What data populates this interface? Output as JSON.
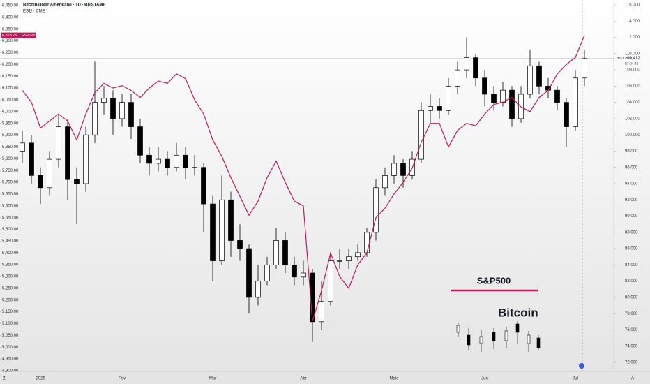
{
  "chart_data": {
    "type": "candlestick",
    "title": "Bitcoin/Dólar Americano · 1D · BITSTAMP",
    "subtitle": "ES1! · CME",
    "categories": [
      null,
      null,
      "2025",
      null,
      null,
      null,
      null,
      null,
      null,
      null,
      null,
      "Fev",
      null,
      null,
      null,
      null,
      null,
      null,
      null,
      null,
      null,
      "Mar",
      null,
      null,
      null,
      null,
      null,
      null,
      null,
      null,
      null,
      "Abr",
      null,
      null,
      null,
      null,
      null,
      null,
      null,
      null,
      null,
      "Maio",
      null,
      null,
      null,
      null,
      null,
      null,
      null,
      null,
      null,
      "Jun",
      null,
      null,
      null,
      null,
      null,
      null,
      null,
      null,
      null,
      "Jul",
      null
    ],
    "series": [
      {
        "name": "Bitcoin",
        "type": "candlestick",
        "axis": "y2",
        "up_color": "#ffffff",
        "down_color": "#000000",
        "open": [
          98000,
          99000,
          95000,
          93500,
          97000,
          101000,
          94500,
          94000,
          100000,
          104000,
          104500,
          102000,
          104000,
          101000,
          97500,
          96500,
          97000,
          96000,
          97500,
          96000,
          96000,
          91500,
          84500,
          92000,
          87000,
          86000,
          80000,
          82000,
          84000,
          87000,
          84000,
          82500,
          83000,
          77000,
          79500,
          84500,
          84500,
          85000,
          85500,
          88000,
          93500,
          95000,
          96500,
          95000,
          97000,
          103000,
          103500,
          103000,
          106000,
          108000,
          109500,
          107000,
          105000,
          104000,
          105500,
          102000,
          105000,
          108500,
          106000,
          105500,
          104000,
          101000,
          107000
        ],
        "high": [
          100500,
          100000,
          96000,
          98000,
          102500,
          102000,
          96000,
          101000,
          109000,
          106000,
          105500,
          105000,
          105000,
          102000,
          98500,
          98500,
          98000,
          99000,
          98500,
          97500,
          96500,
          92500,
          95000,
          93000,
          89000,
          86500,
          84000,
          85000,
          88500,
          88000,
          85000,
          84500,
          83500,
          82000,
          85500,
          86000,
          86000,
          86500,
          88500,
          94500,
          96000,
          97500,
          97000,
          98000,
          104000,
          105000,
          104500,
          107000,
          109000,
          112000,
          110000,
          108000,
          106000,
          106500,
          106000,
          106000,
          110500,
          109000,
          107000,
          106000,
          104500,
          108000,
          110500
        ],
        "low": [
          96500,
          94000,
          91500,
          92500,
          96000,
          92000,
          89000,
          93000,
          99000,
          102500,
          100000,
          101000,
          99500,
          96500,
          95000,
          95500,
          95000,
          95500,
          94500,
          95000,
          88000,
          82000,
          84000,
          85000,
          84500,
          78000,
          79000,
          81500,
          83500,
          83000,
          81500,
          81500,
          74500,
          76000,
          79000,
          83500,
          83500,
          84500,
          85000,
          87000,
          92500,
          94000,
          93500,
          94500,
          96500,
          101500,
          102000,
          102500,
          105000,
          107000,
          106000,
          103500,
          103000,
          103500,
          101000,
          101500,
          104500,
          105000,
          104500,
          103000,
          98500,
          100500,
          106000
        ],
        "close": [
          99000,
          95000,
          93500,
          97000,
          101000,
          94500,
          94000,
          100000,
          104000,
          104500,
          102000,
          104000,
          101000,
          97500,
          96500,
          97000,
          96000,
          97500,
          96000,
          96000,
          91500,
          84500,
          92000,
          87000,
          86000,
          80000,
          82000,
          84000,
          87000,
          84000,
          82500,
          83000,
          77000,
          79500,
          84500,
          84500,
          85000,
          85500,
          88000,
          93500,
          95000,
          96500,
          95000,
          97000,
          103000,
          103500,
          103000,
          106000,
          108000,
          109500,
          107000,
          105000,
          104000,
          105500,
          102000,
          105000,
          108500,
          106000,
          105500,
          104000,
          101000,
          107000,
          109400
        ]
      },
      {
        "name": "S&P500",
        "type": "line",
        "color": "#c2185b",
        "values": [
          6090,
          6040,
          5930,
          5960,
          5990,
          5960,
          5880,
          5990,
          6080,
          6120,
          6100,
          6110,
          6090,
          6060,
          6100,
          6130,
          6120,
          6160,
          6140,
          6050,
          5990,
          5880,
          5810,
          5720,
          5640,
          5560,
          5620,
          5720,
          5790,
          5700,
          5620,
          5600,
          5110,
          5240,
          5400,
          5300,
          5250,
          5350,
          5400,
          5550,
          5590,
          5650,
          5700,
          5760,
          5870,
          5950,
          5950,
          5850,
          5920,
          5950,
          5940,
          5990,
          6030,
          6040,
          6060,
          6020,
          6000,
          6060,
          6090,
          6160,
          6200,
          6230,
          6323.75
        ]
      }
    ],
    "ylim": [
      4900,
      6450
    ],
    "yticks": [
      {
        "value": 4900,
        "label": "4,900.00"
      },
      {
        "value": 4950,
        "label": "4,950.00"
      },
      {
        "value": 5000,
        "label": "5,000.00"
      },
      {
        "value": 5050,
        "label": "5,050.00"
      },
      {
        "value": 5100,
        "label": "5,100.00"
      },
      {
        "value": 5150,
        "label": "5,150.00"
      },
      {
        "value": 5200,
        "label": "5,200.00"
      },
      {
        "value": 5250,
        "label": "5,250.00"
      },
      {
        "value": 5300,
        "label": "5,300.00"
      },
      {
        "value": 5350,
        "label": "5,350.00"
      },
      {
        "value": 5400,
        "label": "5,400.00"
      },
      {
        "value": 5450,
        "label": "5,450.00"
      },
      {
        "value": 5500,
        "label": "5,500.00"
      },
      {
        "value": 5550,
        "label": "5,550.00"
      },
      {
        "value": 5600,
        "label": "5,600.00"
      },
      {
        "value": 5650,
        "label": "5,650.00"
      },
      {
        "value": 5700,
        "label": "5,700.00"
      },
      {
        "value": 5750,
        "label": "5,750.00"
      },
      {
        "value": 5800,
        "label": "5,800.00"
      },
      {
        "value": 5850,
        "label": "5,850.00"
      },
      {
        "value": 5900,
        "label": "5,900.00"
      },
      {
        "value": 5950,
        "label": "5,950.00"
      },
      {
        "value": 6000,
        "label": "6,000.00"
      },
      {
        "value": 6050,
        "label": "6,050.00"
      },
      {
        "value": 6100,
        "label": "6,100.00"
      },
      {
        "value": 6150,
        "label": "6,150.00"
      },
      {
        "value": 6200,
        "label": "6,200.00"
      },
      {
        "value": 6250,
        "label": "6,250.00"
      },
      {
        "value": 6300,
        "label": "6,300.00"
      },
      {
        "value": 6350,
        "label": "6,350.00"
      },
      {
        "value": 6400,
        "label": "6,400.00"
      },
      {
        "value": 6450,
        "label": "6,450.00"
      }
    ],
    "y2lim": [
      72000,
      116000
    ],
    "y2ticks": [
      {
        "value": 72000,
        "label": "72.000"
      },
      {
        "value": 74000,
        "label": "74.000"
      },
      {
        "value": 76000,
        "label": "76.000"
      },
      {
        "value": 78000,
        "label": "78.000"
      },
      {
        "value": 80000,
        "label": "80.000"
      },
      {
        "value": 82000,
        "label": "82.000"
      },
      {
        "value": 84000,
        "label": "84.000"
      },
      {
        "value": 86000,
        "label": "86.000"
      },
      {
        "value": 88000,
        "label": "88.000"
      },
      {
        "value": 90000,
        "label": "90.000"
      },
      {
        "value": 92000,
        "label": "92.000"
      },
      {
        "value": 94000,
        "label": "94.000"
      },
      {
        "value": 96000,
        "label": "96.000"
      },
      {
        "value": 98000,
        "label": "98.000"
      },
      {
        "value": 100000,
        "label": "100.000"
      },
      {
        "value": 102000,
        "label": "102.000"
      },
      {
        "value": 104000,
        "label": "104.000"
      },
      {
        "value": 106000,
        "label": "106.000"
      },
      {
        "value": 108000,
        "label": "108.000"
      },
      {
        "value": 110000,
        "label": "110.000"
      },
      {
        "value": 112000,
        "label": "112.000"
      },
      {
        "value": 114000,
        "label": "114.000"
      },
      {
        "value": 116000,
        "label": "116.000"
      }
    ],
    "es_last": {
      "value": 6323.75,
      "label": "6,323.75",
      "contract": "ES2025"
    },
    "btc_last": {
      "value": 109412,
      "label": "109,412",
      "symbol": "BTCUSD",
      "countdown": "07:04:44"
    },
    "corner_left": "Z",
    "corner_right": "A"
  }
}
